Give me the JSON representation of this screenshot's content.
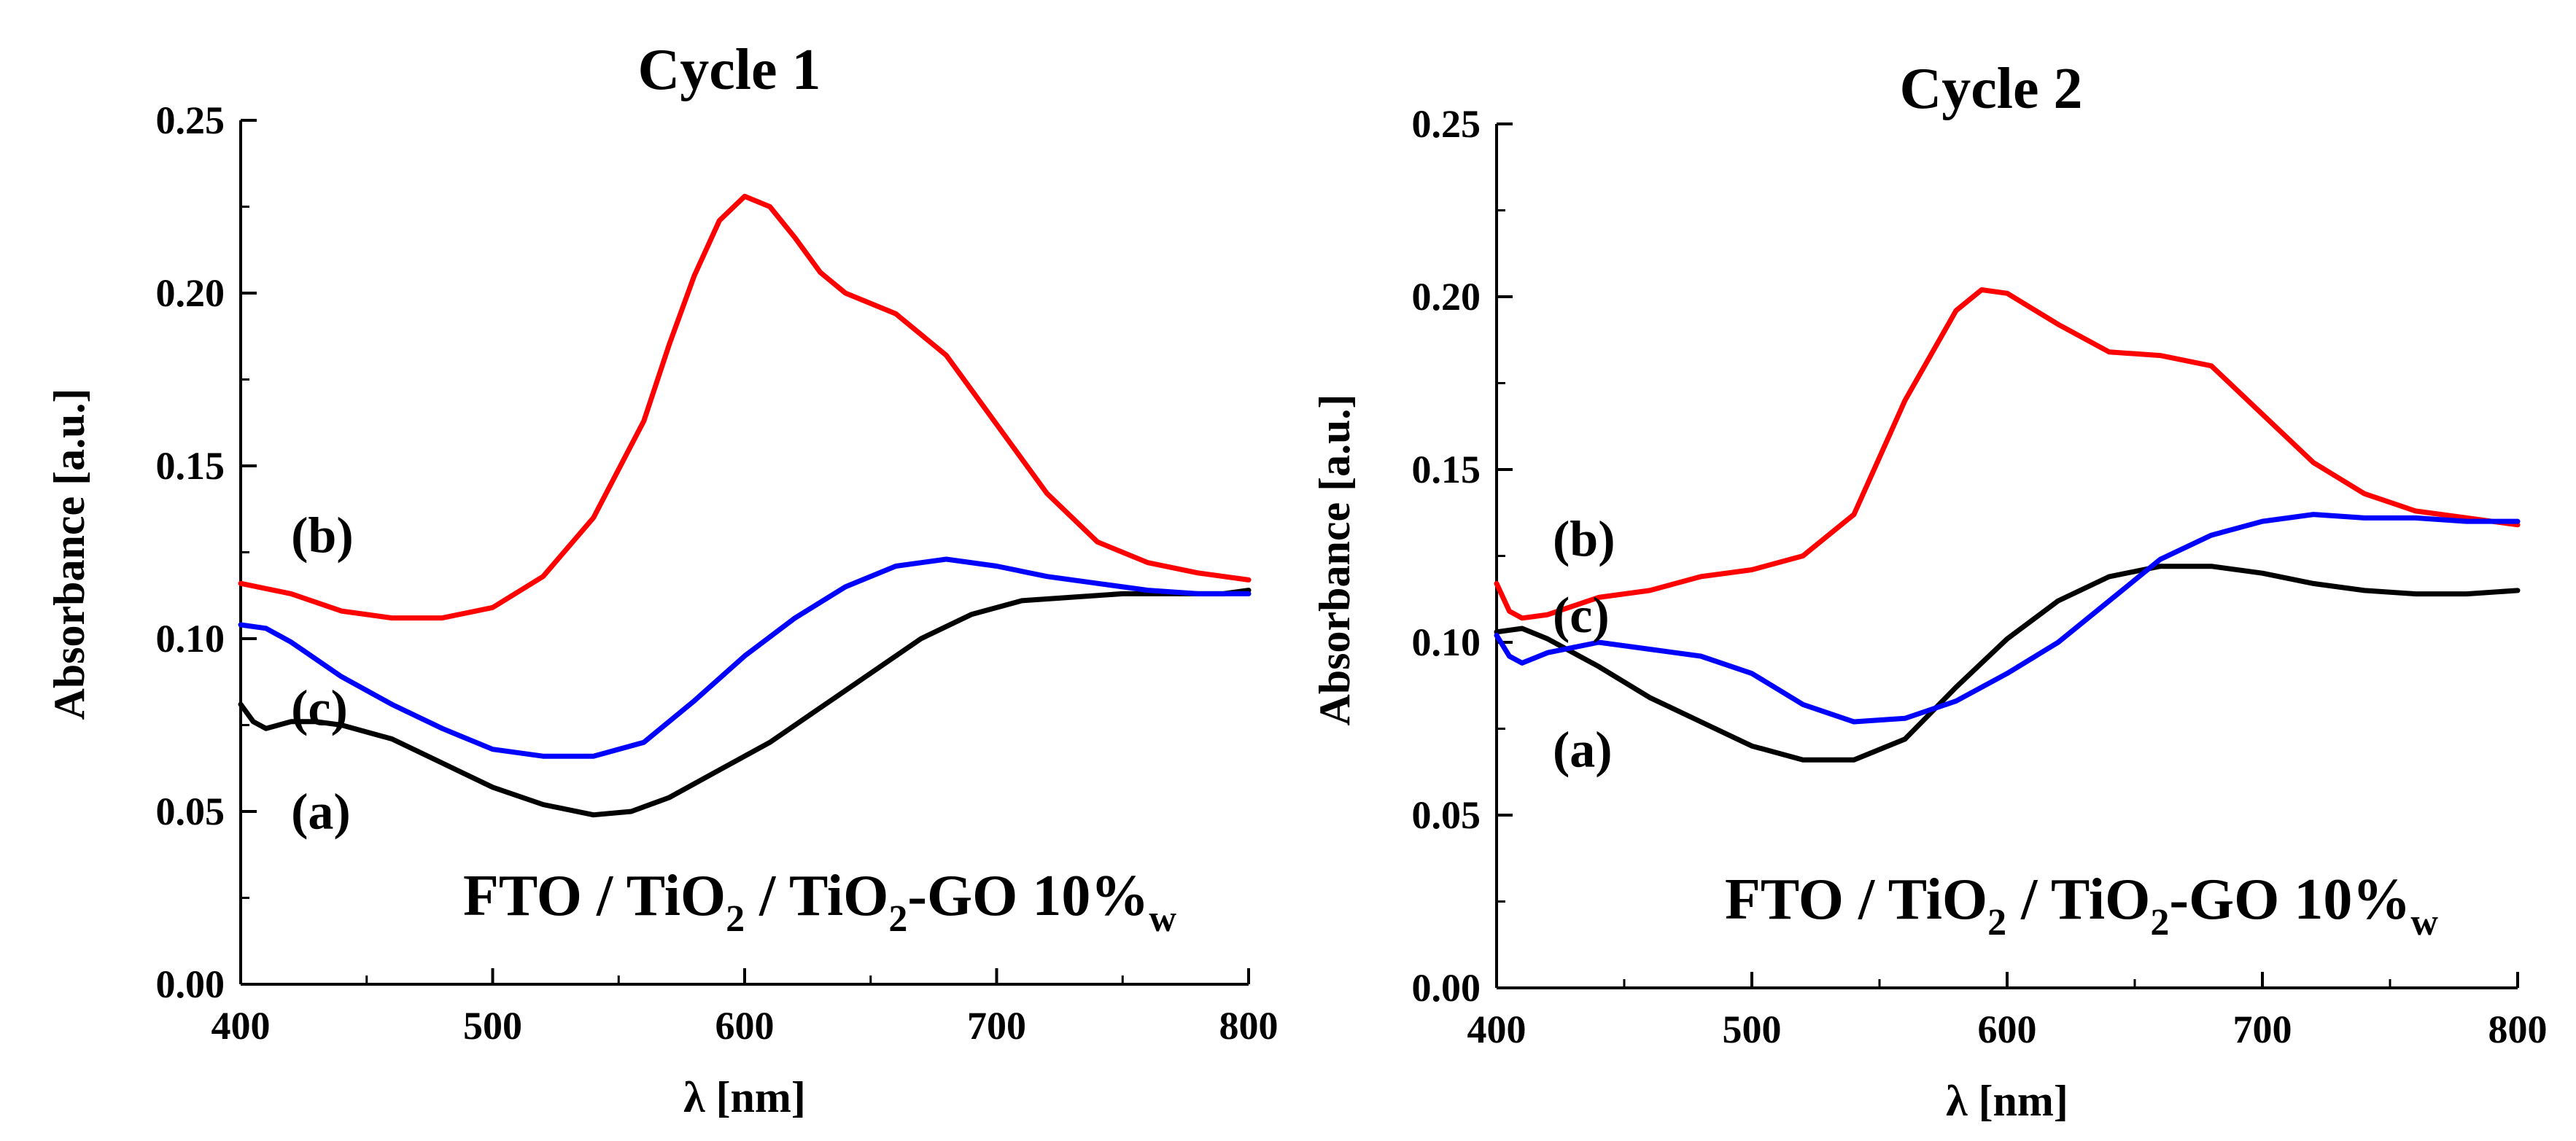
{
  "chart_data": [
    {
      "type": "line",
      "title": "Cycle 1",
      "xlabel": "λ [nm]",
      "ylabel": "Absorbance [a.u.]",
      "xlim": [
        400,
        800
      ],
      "ylim": [
        0.0,
        0.25
      ],
      "xticks": [
        400,
        500,
        600,
        700,
        800
      ],
      "yticks": [
        0.0,
        0.05,
        0.1,
        0.15,
        0.2,
        0.25
      ],
      "xtick_labels": [
        "400",
        "500",
        "600",
        "700",
        "800"
      ],
      "ytick_labels": [
        "0.00",
        "0.05",
        "0.10",
        "0.15",
        "0.20",
        "0.25"
      ],
      "annotation": {
        "main": "FTO / TiO",
        "sub1": "2",
        "mid": " / TiO",
        "sub2": "2",
        "tail": "-GO 10%",
        "sub3": "w"
      },
      "series": [
        {
          "name": "(a)",
          "label": "(a)",
          "color": "#000000",
          "x": [
            400,
            405,
            410,
            420,
            430,
            440,
            460,
            480,
            500,
            520,
            540,
            555,
            570,
            590,
            610,
            630,
            650,
            670,
            690,
            710,
            730,
            750,
            770,
            790,
            800
          ],
          "y": [
            0.081,
            0.076,
            0.074,
            0.076,
            0.076,
            0.075,
            0.071,
            0.064,
            0.057,
            0.052,
            0.049,
            0.05,
            0.054,
            0.062,
            0.07,
            0.08,
            0.09,
            0.1,
            0.107,
            0.111,
            0.112,
            0.113,
            0.113,
            0.113,
            0.114
          ],
          "label_at": [
            420,
            0.045
          ]
        },
        {
          "name": "(b)",
          "label": "(b)",
          "color": "#ff0000",
          "x": [
            400,
            420,
            440,
            460,
            480,
            500,
            520,
            540,
            560,
            570,
            580,
            590,
            600,
            610,
            620,
            630,
            640,
            660,
            680,
            700,
            720,
            740,
            760,
            780,
            800
          ],
          "y": [
            0.116,
            0.113,
            0.108,
            0.106,
            0.106,
            0.109,
            0.118,
            0.135,
            0.163,
            0.185,
            0.205,
            0.221,
            0.228,
            0.225,
            0.216,
            0.206,
            0.2,
            0.194,
            0.182,
            0.162,
            0.142,
            0.128,
            0.122,
            0.119,
            0.117
          ],
          "label_at": [
            420,
            0.125
          ]
        },
        {
          "name": "(c)",
          "label": "(c)",
          "color": "#0000ff",
          "x": [
            400,
            410,
            420,
            440,
            460,
            480,
            500,
            520,
            540,
            560,
            580,
            600,
            620,
            640,
            660,
            680,
            700,
            720,
            740,
            760,
            780,
            800
          ],
          "y": [
            0.104,
            0.103,
            0.099,
            0.089,
            0.081,
            0.074,
            0.068,
            0.066,
            0.066,
            0.07,
            0.082,
            0.095,
            0.106,
            0.115,
            0.121,
            0.123,
            0.121,
            0.118,
            0.116,
            0.114,
            0.113,
            0.113
          ],
          "label_at": [
            420,
            0.075
          ]
        }
      ]
    },
    {
      "type": "line",
      "title": "Cycle 2",
      "xlabel": "λ [nm]",
      "ylabel": "Absorbance [a.u.]",
      "xlim": [
        400,
        800
      ],
      "ylim": [
        0.0,
        0.25
      ],
      "xticks": [
        400,
        500,
        600,
        700,
        800
      ],
      "yticks": [
        0.0,
        0.05,
        0.1,
        0.15,
        0.2,
        0.25
      ],
      "xtick_labels": [
        "400",
        "500",
        "600",
        "700",
        "800"
      ],
      "ytick_labels": [
        "0.00",
        "0.05",
        "0.10",
        "0.15",
        "0.20",
        "0.25"
      ],
      "annotation": {
        "main": "FTO / TiO",
        "sub1": "2",
        "mid": " / TiO",
        "sub2": "2",
        "tail": "-GO 10%",
        "sub3": "w"
      },
      "series": [
        {
          "name": "(a)",
          "label": "(a)",
          "color": "#000000",
          "x": [
            400,
            410,
            420,
            440,
            460,
            480,
            500,
            520,
            540,
            560,
            580,
            600,
            620,
            640,
            660,
            680,
            700,
            720,
            740,
            760,
            780,
            800
          ],
          "y": [
            0.103,
            0.104,
            0.101,
            0.093,
            0.084,
            0.077,
            0.07,
            0.066,
            0.066,
            0.072,
            0.087,
            0.101,
            0.112,
            0.119,
            0.122,
            0.122,
            0.12,
            0.117,
            0.115,
            0.114,
            0.114,
            0.115
          ],
          "label_at": [
            422,
            0.064
          ]
        },
        {
          "name": "(b)",
          "label": "(b)",
          "color": "#ff0000",
          "x": [
            400,
            405,
            410,
            420,
            440,
            460,
            480,
            500,
            520,
            540,
            560,
            580,
            590,
            600,
            620,
            640,
            660,
            680,
            700,
            720,
            740,
            760,
            780,
            800
          ],
          "y": [
            0.117,
            0.109,
            0.107,
            0.108,
            0.113,
            0.115,
            0.119,
            0.121,
            0.125,
            0.137,
            0.17,
            0.196,
            0.202,
            0.201,
            0.192,
            0.184,
            0.183,
            0.18,
            0.166,
            0.152,
            0.143,
            0.138,
            0.136,
            0.134
          ],
          "label_at": [
            422,
            0.125
          ]
        },
        {
          "name": "(c)",
          "label": "(c)",
          "color": "#0000ff",
          "x": [
            400,
            405,
            410,
            420,
            440,
            460,
            480,
            500,
            520,
            540,
            560,
            580,
            600,
            620,
            640,
            660,
            680,
            700,
            720,
            740,
            760,
            780,
            800
          ],
          "y": [
            0.102,
            0.096,
            0.094,
            0.097,
            0.1,
            0.098,
            0.096,
            0.091,
            0.082,
            0.077,
            0.078,
            0.083,
            0.091,
            0.1,
            0.112,
            0.124,
            0.131,
            0.135,
            0.137,
            0.136,
            0.136,
            0.135,
            0.135
          ],
          "label_at": [
            422,
            0.103
          ]
        }
      ]
    }
  ]
}
